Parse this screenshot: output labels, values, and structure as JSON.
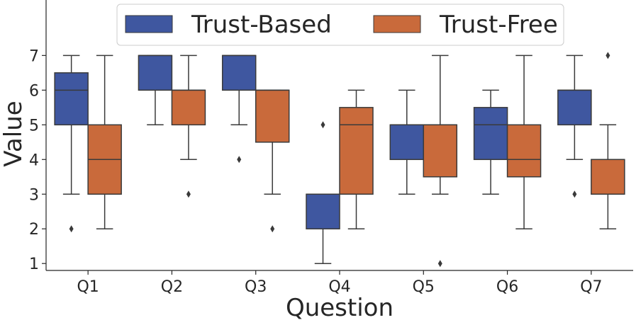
{
  "chart_data": {
    "type": "boxplot",
    "title": "",
    "xlabel": "Question",
    "ylabel": "Value",
    "categories": [
      "Q1",
      "Q2",
      "Q3",
      "Q4",
      "Q5",
      "Q6",
      "Q7"
    ],
    "yticks": [
      1,
      2,
      3,
      4,
      5,
      6,
      7
    ],
    "ylim": [
      0.8,
      8.6
    ],
    "legend": {
      "position": "top-center",
      "columns": 2
    },
    "series": [
      {
        "name": "Trust-Based",
        "color": "#3f57a0",
        "boxes": [
          {
            "q1": 5,
            "median": 6,
            "q3": 6.5,
            "whislo": 3,
            "whishi": 7,
            "fliers": [
              2
            ]
          },
          {
            "q1": 6,
            "median": 7,
            "q3": 7,
            "whislo": 5,
            "whishi": 7,
            "fliers": []
          },
          {
            "q1": 6,
            "median": 7,
            "q3": 7,
            "whislo": 5,
            "whishi": 7,
            "fliers": [
              4
            ]
          },
          {
            "q1": 2,
            "median": 3,
            "q3": 3,
            "whislo": 1,
            "whishi": 3,
            "fliers": [
              5
            ]
          },
          {
            "q1": 4,
            "median": 5,
            "q3": 5,
            "whislo": 3,
            "whishi": 6,
            "fliers": []
          },
          {
            "q1": 4,
            "median": 5,
            "q3": 5.5,
            "whislo": 3,
            "whishi": 6,
            "fliers": []
          },
          {
            "q1": 5,
            "median": 6,
            "q3": 6,
            "whislo": 4,
            "whishi": 7,
            "fliers": [
              3
            ]
          }
        ]
      },
      {
        "name": "Trust-Free",
        "color": "#c96a3b",
        "boxes": [
          {
            "q1": 3,
            "median": 4,
            "q3": 5,
            "whislo": 2,
            "whishi": 7,
            "fliers": []
          },
          {
            "q1": 5,
            "median": 6,
            "q3": 6,
            "whislo": 4,
            "whishi": 7,
            "fliers": [
              3
            ]
          },
          {
            "q1": 4.5,
            "median": 6,
            "q3": 6,
            "whislo": 3,
            "whishi": 6,
            "fliers": [
              2
            ]
          },
          {
            "q1": 3,
            "median": 5,
            "q3": 5.5,
            "whislo": 2,
            "whishi": 6,
            "fliers": []
          },
          {
            "q1": 3.5,
            "median": 5,
            "q3": 5,
            "whislo": 3,
            "whishi": 7,
            "fliers": [
              1
            ]
          },
          {
            "q1": 3.5,
            "median": 4,
            "q3": 5,
            "whislo": 2,
            "whishi": 7,
            "fliers": []
          },
          {
            "q1": 3,
            "median": 4,
            "q3": 4,
            "whislo": 2,
            "whishi": 5,
            "fliers": [
              7
            ]
          }
        ]
      }
    ]
  }
}
